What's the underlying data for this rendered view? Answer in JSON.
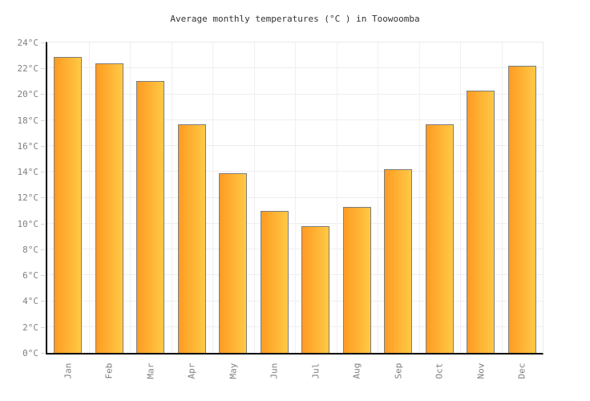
{
  "title": "Average monthly temperatures (°C ) in Toowoomba",
  "colors": {
    "bar_gradient_left": "#ff9b22",
    "bar_gradient_right": "#ffc946",
    "bar_border": "#7d7d7d",
    "axis": "#000000",
    "grid": "#eeeeee",
    "tick": "#d4d4d4",
    "tick_label": "#808080",
    "title_text": "#333333",
    "background": "#ffffff"
  },
  "chart_data": {
    "type": "bar",
    "title": "Average monthly temperatures (°C ) in Toowoomba",
    "categories": [
      "Jan",
      "Feb",
      "Mar",
      "Apr",
      "May",
      "Jun",
      "Jul",
      "Aug",
      "Sep",
      "Oct",
      "Nov",
      "Dec"
    ],
    "values": [
      22.9,
      22.4,
      21.0,
      17.7,
      13.9,
      11.0,
      9.8,
      11.3,
      14.2,
      17.7,
      20.3,
      22.2
    ],
    "xlabel": "",
    "ylabel": "",
    "ylim": [
      0,
      24
    ],
    "ytick_step": 2,
    "ytick_suffix": "°C",
    "grid": true,
    "legend": "none",
    "bar_orientation": "vertical",
    "x_label_rotation_deg": -90
  }
}
